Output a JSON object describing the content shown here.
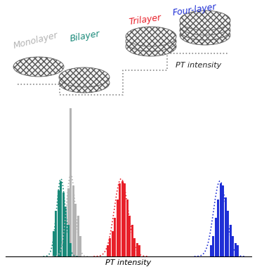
{
  "chart_data": {
    "type": "histogram",
    "x_label": "PT intensity",
    "annotations": [
      "PT intensity"
    ],
    "xlim": [
      0,
      100
    ],
    "ylim": [
      0,
      100
    ],
    "xticks": [],
    "yticks": [],
    "tick_labels": false,
    "grid": false,
    "series": [
      {
        "name": "Monolayer",
        "color": "#b3b3b3",
        "line_style": "dotted",
        "bins": [
          23,
          24,
          25,
          26,
          27,
          28,
          29,
          30,
          31
        ],
        "values": [
          8,
          20,
          30,
          65,
          31,
          23,
          18,
          9
        ],
        "fit": {
          "mean": 26.5,
          "sd": 1.8,
          "peak": 36
        }
      },
      {
        "name": "Bilayer",
        "color": "#1a8a7a",
        "line_style": "dotted",
        "bins": [
          19,
          20,
          21,
          22,
          23,
          24,
          25,
          26,
          27
        ],
        "values": [
          11,
          20,
          29,
          33,
          28,
          22,
          14,
          6
        ],
        "fit": {
          "mean": 22.5,
          "sd": 1.8,
          "peak": 34
        }
      },
      {
        "name": "Trilayer",
        "color": "#e8202a",
        "line_style": "dotted",
        "bins": [
          41,
          42,
          43,
          44,
          45,
          46,
          47,
          48,
          49,
          50,
          51,
          52,
          53,
          54,
          55
        ],
        "values": [
          5,
          8,
          11,
          17,
          25,
          32,
          33,
          32,
          25,
          18,
          14,
          8,
          6,
          5
        ],
        "fit": {
          "mean": 47,
          "sd": 2.8,
          "peak": 34
        }
      },
      {
        "name": "Four-layer",
        "color": "#1f2fd6",
        "line_style": "dotted",
        "bins": [
          83,
          84,
          85,
          86,
          87,
          88,
          89,
          90,
          91,
          92,
          93,
          94,
          95
        ],
        "values": [
          5,
          9,
          17,
          25,
          32,
          31,
          26,
          20,
          14,
          9,
          6,
          5
        ],
        "fit": {
          "mean": 87.2,
          "sd": 2.6,
          "peak": 33
        }
      }
    ]
  }
}
